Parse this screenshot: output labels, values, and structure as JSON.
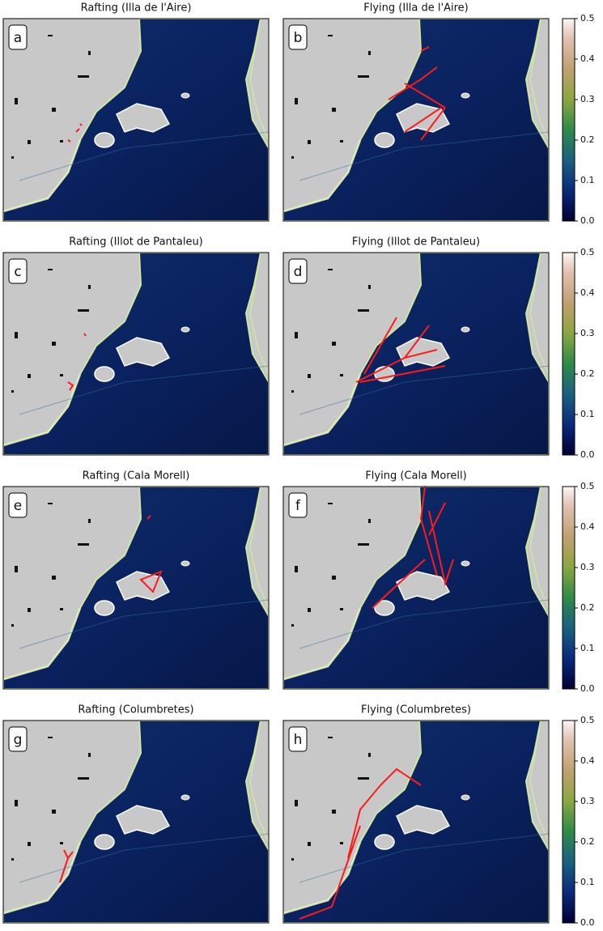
{
  "panels": [
    {
      "label": "a",
      "title": "Rafting (Illa de l'Aire)"
    },
    {
      "label": "b",
      "title": "Flying (Illa de l'Aire)"
    },
    {
      "label": "c",
      "title": "Rafting (Illot de Pantaleu)"
    },
    {
      "label": "d",
      "title": "Flying (Illot de Pantaleu)"
    },
    {
      "label": "e",
      "title": "Rafting (Cala Morell)"
    },
    {
      "label": "f",
      "title": "Flying (Cala Morell)"
    },
    {
      "label": "g",
      "title": "Rafting (Columbretes)"
    },
    {
      "label": "h",
      "title": "Flying (Columbretes)"
    }
  ],
  "colorbar": {
    "lim": [
      0,
      0.5
    ],
    "ticks": [
      {
        "value": 0,
        "label": "0.0"
      },
      {
        "value": 0.1,
        "label": "0.1"
      },
      {
        "value": 0.2,
        "label": "0.2"
      },
      {
        "value": 0.3,
        "label": "0.3"
      },
      {
        "value": 0.4,
        "label": "0.4"
      },
      {
        "value": 0.5,
        "label": "0.5"
      }
    ]
  }
}
